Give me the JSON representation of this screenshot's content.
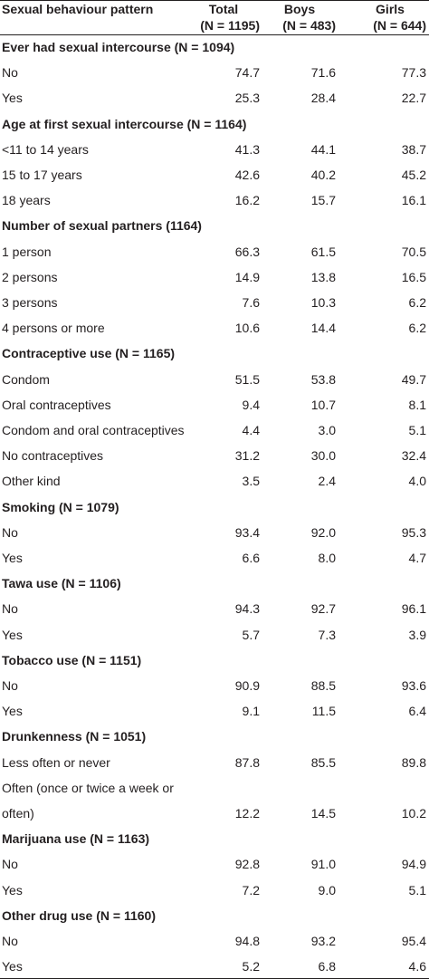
{
  "header": {
    "label": "Sexual behaviour pattern",
    "columns": [
      {
        "name": "Total",
        "n": "(N = 1195)"
      },
      {
        "name": "Boys",
        "n": "(N = 483)"
      },
      {
        "name": "Girls",
        "n": "(N = 644)"
      }
    ]
  },
  "sections": [
    {
      "title": "Ever had sexual intercourse (N = 1094)",
      "rows": [
        {
          "label": "No",
          "values": [
            "74.7",
            "71.6",
            "77.3"
          ]
        },
        {
          "label": "Yes",
          "values": [
            "25.3",
            "28.4",
            "22.7"
          ]
        }
      ]
    },
    {
      "title": "Age at first sexual intercourse (N = 1164)",
      "rows": [
        {
          "label": "<11 to 14 years",
          "values": [
            "41.3",
            "44.1",
            "38.7"
          ]
        },
        {
          "label": "15 to 17 years",
          "values": [
            "42.6",
            "40.2",
            "45.2"
          ]
        },
        {
          "label": "18 years",
          "values": [
            "16.2",
            "15.7",
            "16.1"
          ]
        }
      ]
    },
    {
      "title": "Number of sexual partners (1164)",
      "rows": [
        {
          "label": "1 person",
          "values": [
            "66.3",
            "61.5",
            "70.5"
          ]
        },
        {
          "label": "2 persons",
          "values": [
            "14.9",
            "13.8",
            "16.5"
          ]
        },
        {
          "label": "3 persons",
          "values": [
            "7.6",
            "10.3",
            "6.2"
          ]
        },
        {
          "label": "4 persons or more",
          "values": [
            "10.6",
            "14.4",
            "6.2"
          ]
        }
      ]
    },
    {
      "title": "Contraceptive use (N = 1165)",
      "rows": [
        {
          "label": "Condom",
          "values": [
            "51.5",
            "53.8",
            "49.7"
          ]
        },
        {
          "label": "Oral contraceptives",
          "values": [
            "9.4",
            "10.7",
            "8.1"
          ]
        },
        {
          "label": "Condom and oral contraceptives",
          "values": [
            "4.4",
            "3.0",
            "5.1"
          ]
        },
        {
          "label": "No contraceptives",
          "values": [
            "31.2",
            "30.0",
            "32.4"
          ]
        },
        {
          "label": "Other kind",
          "values": [
            "3.5",
            "2.4",
            "4.0"
          ]
        }
      ]
    },
    {
      "title": "Smoking (N = 1079)",
      "rows": [
        {
          "label": "No",
          "values": [
            "93.4",
            "92.0",
            "95.3"
          ]
        },
        {
          "label": "Yes",
          "values": [
            "6.6",
            "8.0",
            "4.7"
          ]
        }
      ]
    },
    {
      "title": "Tawa use (N = 1106)",
      "rows": [
        {
          "label": "No",
          "values": [
            "94.3",
            "92.7",
            "96.1"
          ]
        },
        {
          "label": "Yes",
          "values": [
            "5.7",
            "7.3",
            "3.9"
          ]
        }
      ]
    },
    {
      "title": "Tobacco use (N = 1151)",
      "rows": [
        {
          "label": "No",
          "values": [
            "90.9",
            "88.5",
            "93.6"
          ]
        },
        {
          "label": "Yes",
          "values": [
            "9.1",
            "11.5",
            "6.4"
          ]
        }
      ]
    },
    {
      "title": "Drunkenness (N = 1051)",
      "rows": [
        {
          "label": "Less often or never",
          "values": [
            "87.8",
            "85.5",
            "89.8"
          ]
        },
        {
          "label": "Often (once or twice a week or often)",
          "values": [
            "12.2",
            "14.5",
            "10.2"
          ]
        }
      ]
    },
    {
      "title": "Marijuana use (N = 1163)",
      "rows": [
        {
          "label": "No",
          "values": [
            "92.8",
            "91.0",
            "94.9"
          ]
        },
        {
          "label": "Yes",
          "values": [
            "7.2",
            "9.0",
            "5.1"
          ]
        }
      ]
    },
    {
      "title": "Other drug use (N = 1160)",
      "rows": [
        {
          "label": "No",
          "values": [
            "94.8",
            "93.2",
            "95.4"
          ]
        },
        {
          "label": "Yes",
          "values": [
            "5.2",
            "6.8",
            "4.6"
          ]
        }
      ]
    }
  ]
}
